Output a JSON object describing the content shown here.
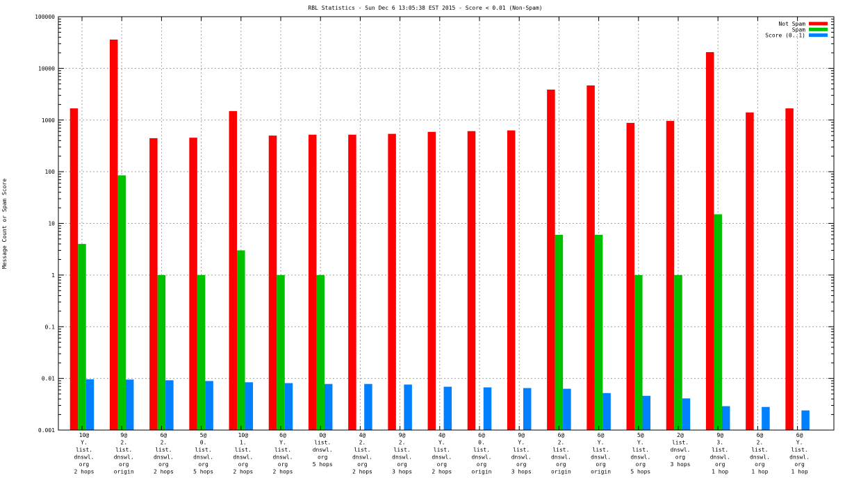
{
  "chart_data": {
    "type": "bar",
    "title": "RBL Statistics - Sun Dec  6 13:05:38 EST 2015 - Score < 0.01 (Non-Spam)",
    "xlabel": "",
    "ylabel": "Message Count or Spam Score",
    "yscale": "log",
    "ylim": [
      0.001,
      100000
    ],
    "yticks": [
      "0.001",
      "0.01",
      "0.1",
      "1",
      "10",
      "100",
      "1000",
      "10000",
      "100000"
    ],
    "grid": true,
    "legend_position": "top-right",
    "categories": [
      [
        "10@",
        "Y.",
        "list.",
        "dnswl.",
        "org",
        "2 hops"
      ],
      [
        "9@",
        "2.",
        "list.",
        "dnswl.",
        "org",
        "origin"
      ],
      [
        "6@",
        "2.",
        "list.",
        "dnswl.",
        "org",
        "2 hops"
      ],
      [
        "5@",
        "0.",
        "list.",
        "dnswl.",
        "org",
        "5 hops"
      ],
      [
        "10@",
        "1.",
        "list.",
        "dnswl.",
        "org",
        "2 hops"
      ],
      [
        "6@",
        "Y.",
        "list.",
        "dnswl.",
        "org",
        "2 hops"
      ],
      [
        "0@",
        "list.",
        "dnswl.",
        "org",
        "5 hops"
      ],
      [
        "4@",
        "2.",
        "list.",
        "dnswl.",
        "org",
        "2 hops"
      ],
      [
        "9@",
        "2.",
        "list.",
        "dnswl.",
        "org",
        "3 hops"
      ],
      [
        "4@",
        "Y.",
        "list.",
        "dnswl.",
        "org",
        "2 hops"
      ],
      [
        "6@",
        "0.",
        "list.",
        "dnswl.",
        "org",
        "origin"
      ],
      [
        "9@",
        "Y.",
        "list.",
        "dnswl.",
        "org",
        "3 hops"
      ],
      [
        "6@",
        "2.",
        "list.",
        "dnswl.",
        "org",
        "origin"
      ],
      [
        "6@",
        "Y.",
        "list.",
        "dnswl.",
        "org",
        "origin"
      ],
      [
        "5@",
        "Y.",
        "list.",
        "dnswl.",
        "org",
        "5 hops"
      ],
      [
        "2@",
        "list.",
        "dnswl.",
        "org",
        "3 hops"
      ],
      [
        "9@",
        "3.",
        "list.",
        "dnswl.",
        "org",
        "1 hop"
      ],
      [
        "6@",
        "2.",
        "list.",
        "dnswl.",
        "org",
        "1 hop"
      ],
      [
        "6@",
        "Y.",
        "list.",
        "dnswl.",
        "org",
        "1 hop"
      ]
    ],
    "series": [
      {
        "name": "Not Spam",
        "color": "#ff0000",
        "values": [
          1680,
          36000,
          445,
          455,
          1490,
          500,
          520,
          520,
          540,
          590,
          610,
          630,
          3880,
          4670,
          880,
          960,
          20600,
          1400,
          1680
        ]
      },
      {
        "name": "Spam",
        "color": "#00c000",
        "values": [
          4,
          85,
          1,
          1,
          3,
          1,
          1,
          0,
          0,
          0,
          0,
          0,
          6,
          6,
          1,
          1,
          15,
          0,
          0
        ]
      },
      {
        "name": "Score (0..1)",
        "color": "#0080ff",
        "values": [
          0.0096,
          0.0095,
          0.0092,
          0.0089,
          0.0084,
          0.0081,
          0.0078,
          0.0078,
          0.0076,
          0.0069,
          0.0067,
          0.0065,
          0.0063,
          0.0052,
          0.0046,
          0.0041,
          0.0029,
          0.0028,
          0.0024
        ]
      }
    ]
  }
}
